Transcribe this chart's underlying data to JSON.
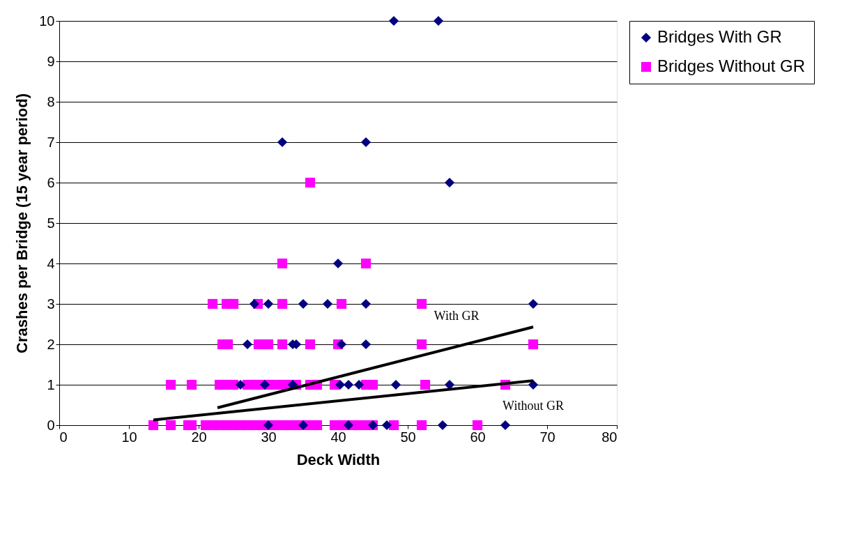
{
  "chart_data": {
    "type": "scatter",
    "xlabel": "Deck Width",
    "ylabel": "Crashes per Bridge (15 year period)",
    "xlim": [
      0,
      80
    ],
    "xticks": [
      0,
      10,
      20,
      30,
      40,
      50,
      60,
      70,
      80
    ],
    "ylim": [
      0,
      10
    ],
    "yticks": [
      0,
      1,
      2,
      3,
      4,
      5,
      6,
      7,
      8,
      9,
      10
    ],
    "grid": "y",
    "legend": "top right",
    "series": [
      {
        "name": "Bridges With GR",
        "color": "#000080",
        "marker": "diamond",
        "x": [
          48,
          54.4,
          32,
          44,
          56,
          40,
          28,
          30,
          35,
          38.5,
          44,
          68,
          27,
          33.5,
          34,
          40.5,
          44,
          26,
          29.5,
          33.5,
          40.3,
          41.5,
          43,
          48.3,
          56,
          68,
          30,
          35,
          41.5,
          45,
          47,
          55,
          64
        ],
        "values": [
          10,
          10,
          7,
          7,
          6,
          4,
          3,
          3,
          3,
          3,
          3,
          3,
          2,
          2,
          2,
          2,
          2,
          1,
          1,
          1,
          1,
          1,
          1,
          1,
          1,
          1,
          0,
          0,
          0,
          0,
          0,
          0,
          0
        ]
      },
      {
        "name": "Bridges Without GR",
        "color": "#ff00ff",
        "marker": "square",
        "x": [
          36,
          32,
          44,
          22,
          24,
          24.5,
          25,
          28.5,
          32,
          40.5,
          52,
          23.4,
          24.2,
          28.6,
          29.4,
          30,
          32,
          36,
          40,
          52,
          68,
          16,
          19,
          23,
          24,
          25,
          27,
          28,
          29,
          30,
          31,
          32,
          33,
          34,
          36,
          37,
          39.5,
          44,
          45,
          52.5,
          64,
          13.5,
          16,
          18.5,
          19,
          21,
          22,
          23,
          24,
          25,
          26,
          27,
          28,
          29,
          30,
          31,
          32,
          33,
          34,
          35,
          36,
          37,
          39.5,
          40,
          41,
          42,
          43,
          44,
          45,
          48,
          52,
          60
        ],
        "values": [
          6,
          4,
          4,
          3,
          3,
          3,
          3,
          3,
          3,
          3,
          3,
          2,
          2,
          2,
          2,
          2,
          2,
          2,
          2,
          2,
          2,
          1,
          1,
          1,
          1,
          1,
          1,
          1,
          1,
          1,
          1,
          1,
          1,
          1,
          1,
          1,
          1,
          1,
          1,
          1,
          1,
          0,
          0,
          0,
          0,
          0,
          0,
          0,
          0,
          0,
          0,
          0,
          0,
          0,
          0,
          0,
          0,
          0,
          0,
          0,
          0,
          0,
          0,
          0,
          0,
          0,
          0,
          0,
          0,
          0,
          0,
          0
        ]
      },
      {
        "type": "line",
        "color": "#000000",
        "x": [
          22.7,
          68
        ],
        "values": [
          0.43,
          2.43
        ]
      },
      {
        "type": "line",
        "color": "#000000",
        "x": [
          13.5,
          68
        ],
        "values": [
          0.13,
          1.1
        ]
      }
    ],
    "annotations": [
      {
        "text": "With GR",
        "x": 62,
        "y": 2.17
      },
      {
        "text": "Without GR",
        "x": 63,
        "y": 1.01
      }
    ]
  }
}
